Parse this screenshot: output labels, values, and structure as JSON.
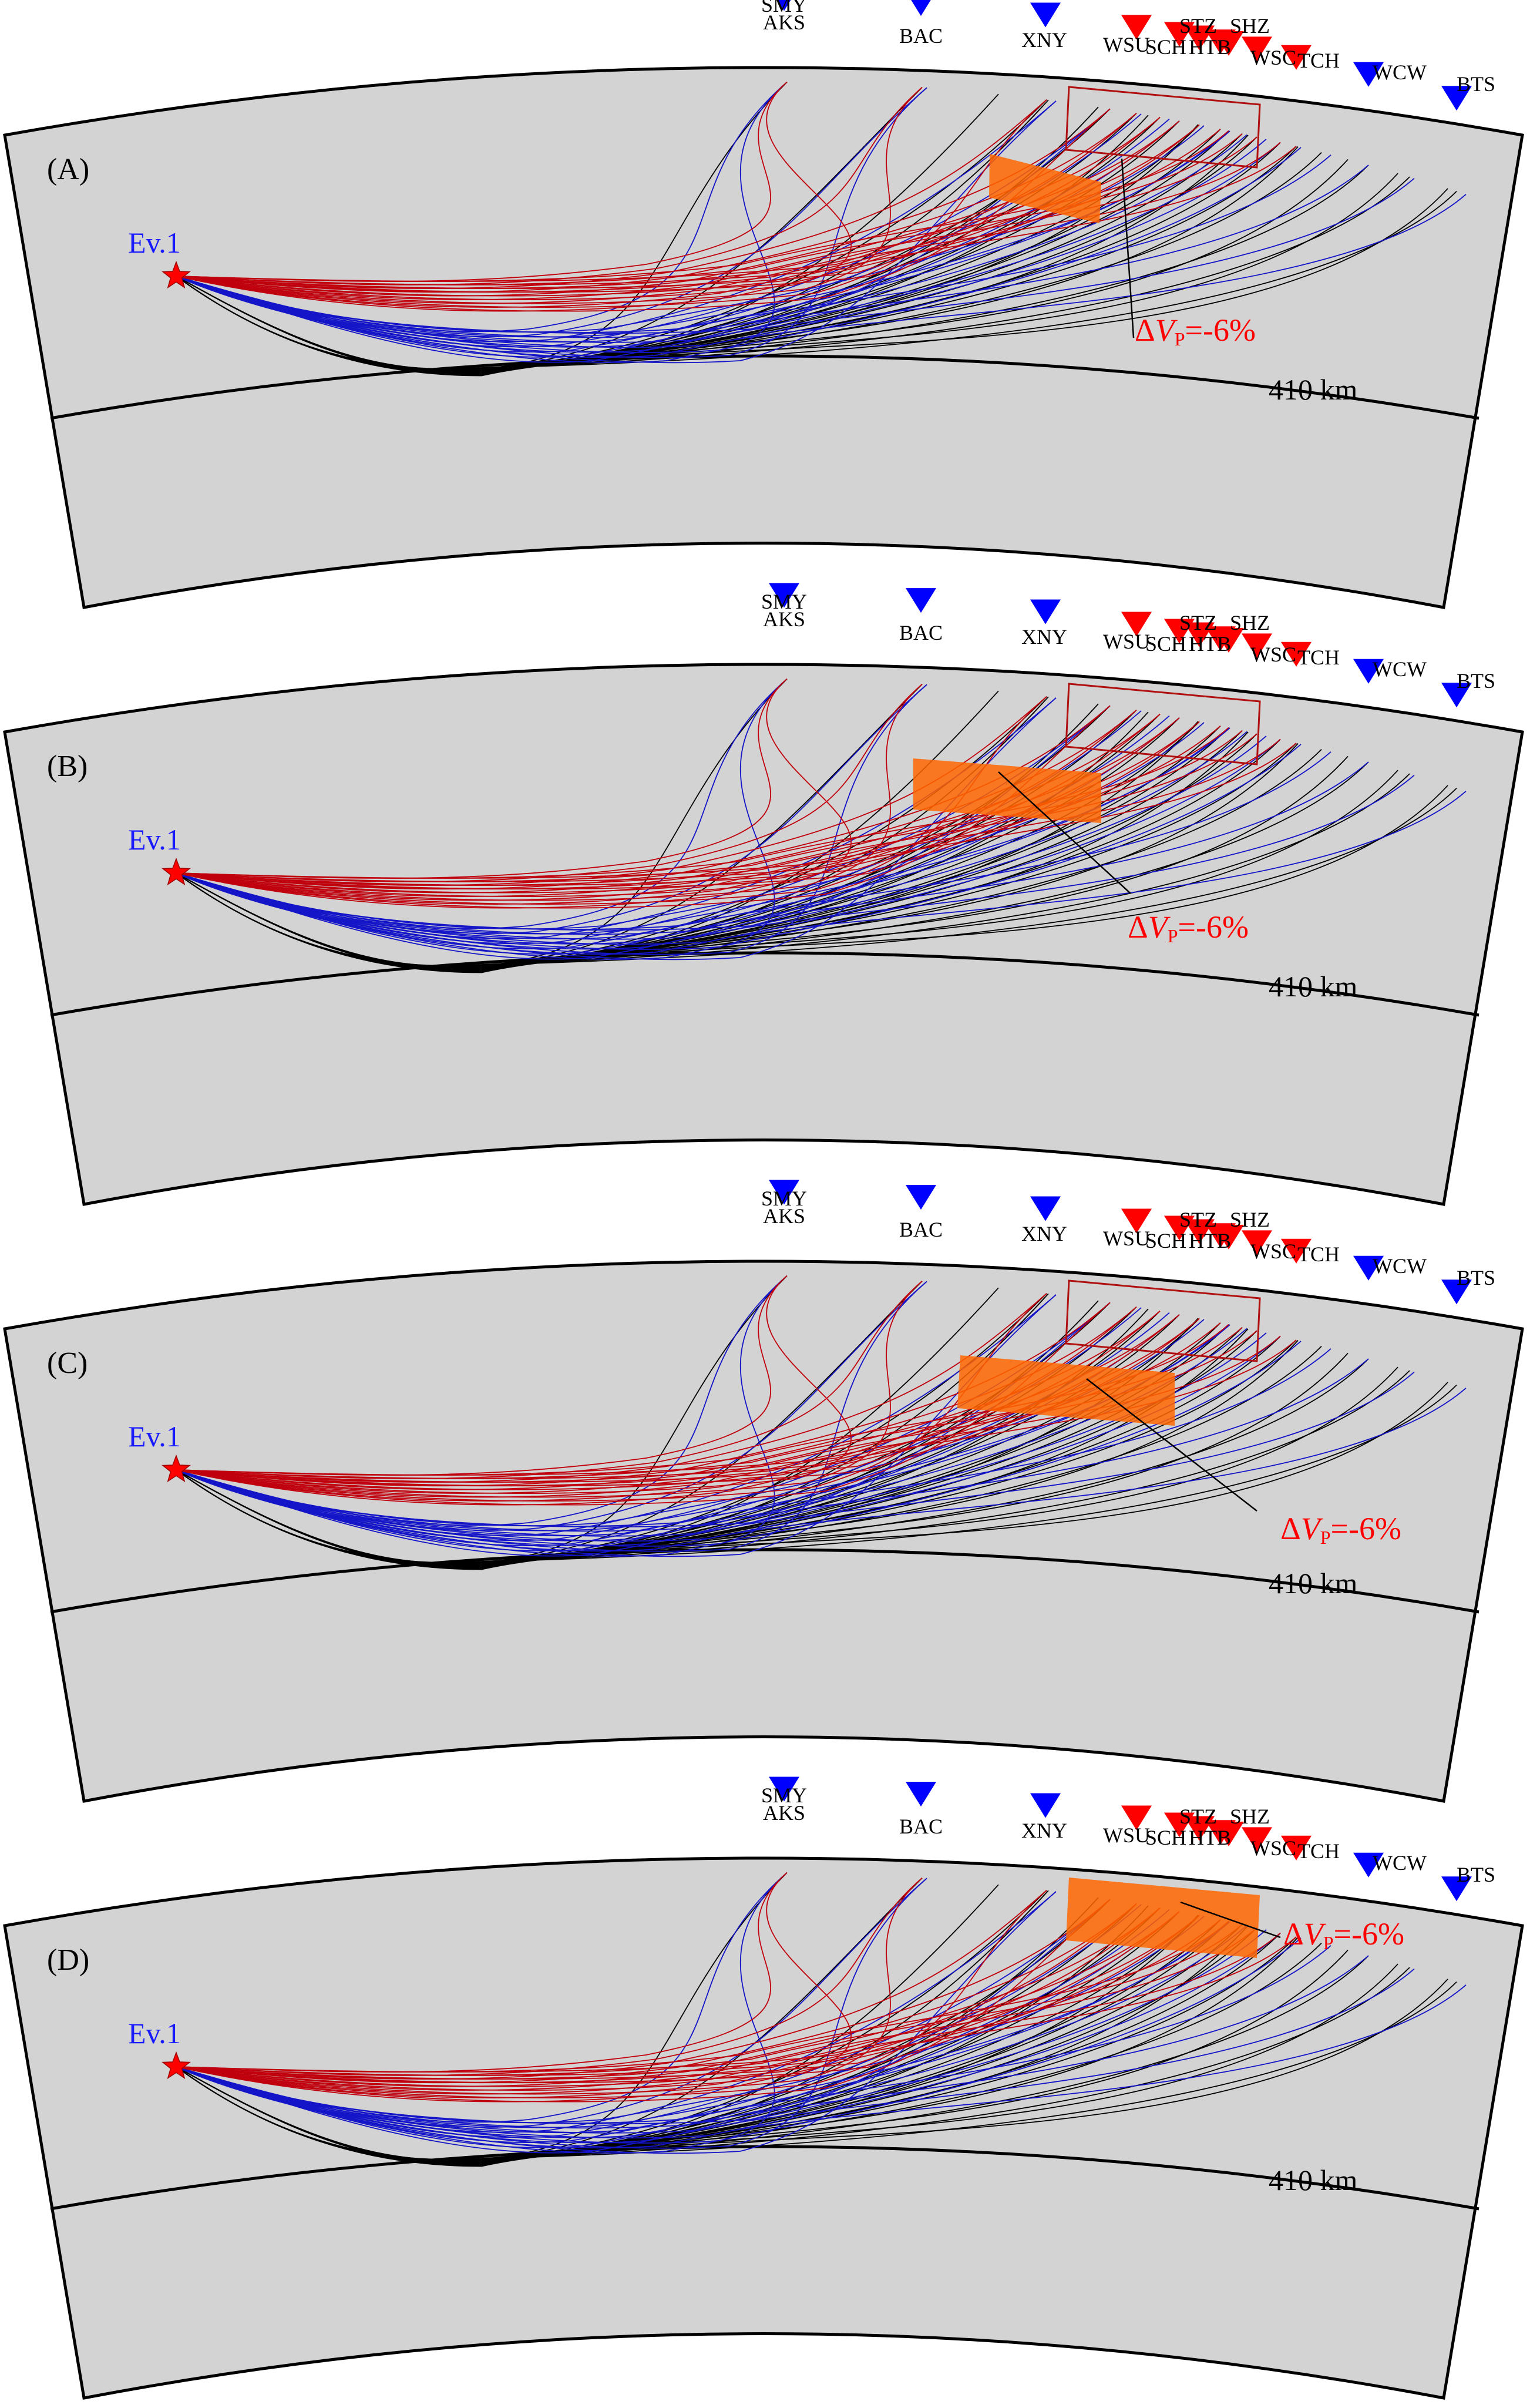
{
  "event_label": "Ev.1",
  "depth_label": "410 km",
  "anomaly": {
    "prefix": "Δ",
    "variable": "V",
    "subscript": "P",
    "value": "=-6%"
  },
  "colors": {
    "background": "#d3d3d3",
    "boundary": "#000000",
    "ray_red": "#c0000c",
    "ray_blue": "#1414c8",
    "ray_black": "#000000",
    "station_red": "#ff0000",
    "station_blue": "#0000ff",
    "anomaly_fill": "#ff6600",
    "event_star": "#ff0000",
    "event_label": "#1a1aff",
    "anomaly_label": "#ff0000"
  },
  "stations": [
    {
      "code": "SMY",
      "color": "blue"
    },
    {
      "code": "AKS",
      "color": "blue"
    },
    {
      "code": "BAC",
      "color": "blue"
    },
    {
      "code": "XNY",
      "color": "blue"
    },
    {
      "code": "WSU",
      "color": "red"
    },
    {
      "code": "SCH",
      "color": "red"
    },
    {
      "code": "STZ",
      "color": "red"
    },
    {
      "code": "HTB",
      "color": "red"
    },
    {
      "code": "SHZ",
      "color": "red"
    },
    {
      "code": "WSC",
      "color": "red"
    },
    {
      "code": "TCH",
      "color": "red"
    },
    {
      "code": "WCW",
      "color": "blue"
    },
    {
      "code": "BTS",
      "color": "blue"
    }
  ],
  "panels": [
    {
      "label": "(A)",
      "anomaly_model": "A"
    },
    {
      "label": "(B)",
      "anomaly_model": "B"
    },
    {
      "label": "(C)",
      "anomaly_model": "C"
    },
    {
      "label": "(D)",
      "anomaly_model": "D"
    }
  ]
}
